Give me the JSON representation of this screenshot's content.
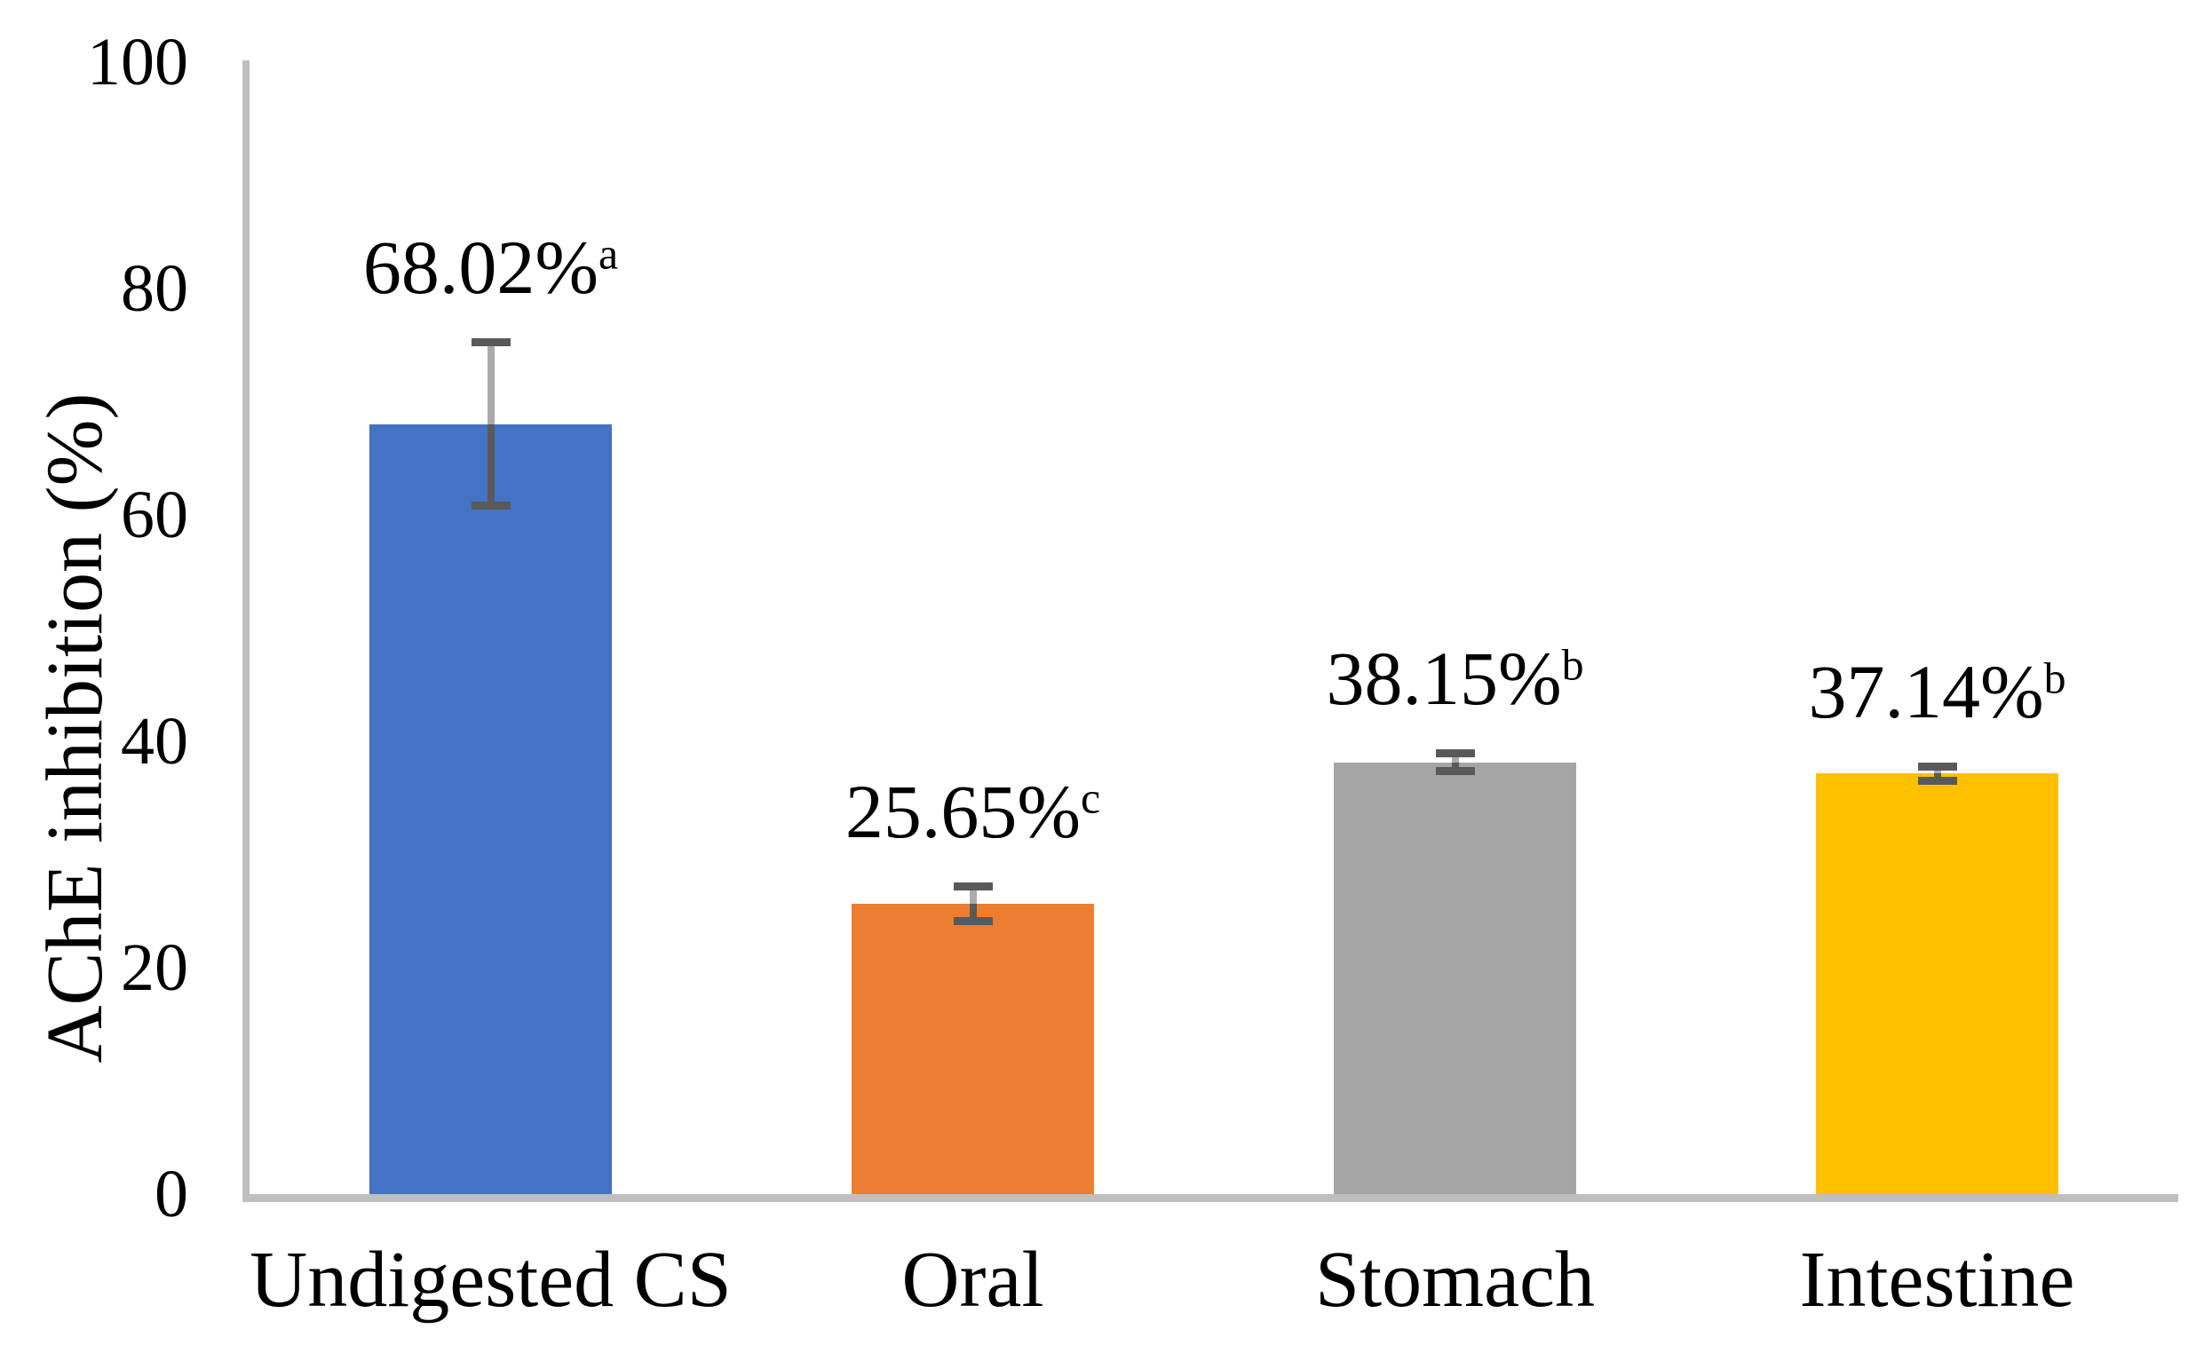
{
  "chart_data": {
    "type": "bar",
    "title": "",
    "xlabel": "",
    "ylabel": "AChE inhibition (%)",
    "ylim": [
      0,
      100
    ],
    "yticks": [
      0,
      20,
      40,
      60,
      80,
      100
    ],
    "grid": false,
    "legend": null,
    "categories": [
      "Undigested CS",
      "Oral",
      "Stomach",
      "Intestine"
    ],
    "values": [
      68.02,
      25.65,
      38.15,
      37.14
    ],
    "errors": [
      7.4,
      1.7,
      1.0,
      0.85
    ],
    "data_labels": [
      {
        "text": "68.02%",
        "superscript": "a"
      },
      {
        "text": "25.65%",
        "superscript": "c"
      },
      {
        "text": "38.15%",
        "superscript": "b"
      },
      {
        "text": "37.14%",
        "superscript": "b"
      }
    ],
    "bar_colors": [
      "#4472C4",
      "#ED7D31",
      "#A5A5A5",
      "#FFC000"
    ],
    "colors": {
      "axis_line": "#BFBFBF",
      "error_cap": "#595959",
      "error_line_lower": "#595959",
      "error_line_upper": "#ABABAB",
      "text": "#000000",
      "background": "#FFFFFF"
    }
  }
}
